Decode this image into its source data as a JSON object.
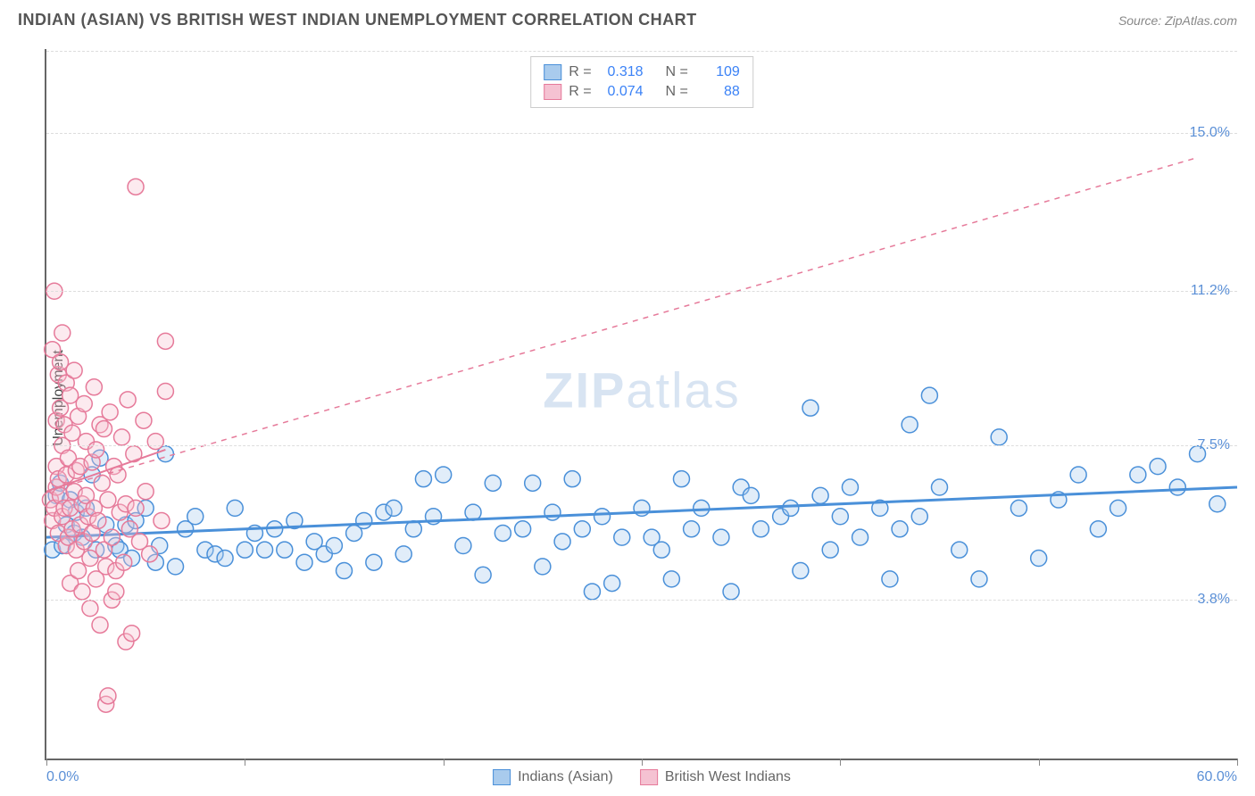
{
  "title": "INDIAN (ASIAN) VS BRITISH WEST INDIAN UNEMPLOYMENT CORRELATION CHART",
  "source": "Source: ZipAtlas.com",
  "y_axis_label": "Unemployment",
  "watermark_bold": "ZIP",
  "watermark_light": "atlas",
  "chart": {
    "type": "scatter",
    "xlim": [
      0,
      60
    ],
    "ylim": [
      0,
      17
    ],
    "x_tick_positions": [
      0,
      10,
      20,
      30,
      40,
      50,
      60
    ],
    "x_min_label": "0.0%",
    "x_max_label": "60.0%",
    "y_gridlines": [
      3.8,
      7.5,
      11.2,
      15.0
    ],
    "y_tick_labels": [
      "3.8%",
      "7.5%",
      "11.2%",
      "15.0%"
    ],
    "background_color": "#ffffff",
    "grid_color": "#dddddd",
    "axis_color": "#666666",
    "tick_label_color": "#5a8fd6",
    "marker_radius": 9,
    "marker_stroke_width": 1.5,
    "marker_fill_opacity": 0.35,
    "series": [
      {
        "name": "Indians (Asian)",
        "stroke": "#4a90d9",
        "fill": "#a9cbed",
        "r": 0.318,
        "n": 109,
        "trend": {
          "x1": 0,
          "y1": 5.3,
          "x2": 60,
          "y2": 6.5,
          "solid": true,
          "width": 3
        },
        "points": [
          [
            0.3,
            5.0
          ],
          [
            0.5,
            6.3
          ],
          [
            0.7,
            6.6
          ],
          [
            0.8,
            5.1
          ],
          [
            1.0,
            5.6
          ],
          [
            1.2,
            6.2
          ],
          [
            1.4,
            5.4
          ],
          [
            1.5,
            5.9
          ],
          [
            1.8,
            5.3
          ],
          [
            2.0,
            6.0
          ],
          [
            2.3,
            6.8
          ],
          [
            2.5,
            5.0
          ],
          [
            2.7,
            7.2
          ],
          [
            3.0,
            5.6
          ],
          [
            3.5,
            5.1
          ],
          [
            3.7,
            5.0
          ],
          [
            4.0,
            5.6
          ],
          [
            4.3,
            4.8
          ],
          [
            4.5,
            5.7
          ],
          [
            5.0,
            6.0
          ],
          [
            5.5,
            4.7
          ],
          [
            5.7,
            5.1
          ],
          [
            6.0,
            7.3
          ],
          [
            6.5,
            4.6
          ],
          [
            7.0,
            5.5
          ],
          [
            7.5,
            5.8
          ],
          [
            8.0,
            5.0
          ],
          [
            8.5,
            4.9
          ],
          [
            9.0,
            4.8
          ],
          [
            9.5,
            6.0
          ],
          [
            10.0,
            5.0
          ],
          [
            10.5,
            5.4
          ],
          [
            11.0,
            5.0
          ],
          [
            11.5,
            5.5
          ],
          [
            12.0,
            5.0
          ],
          [
            12.5,
            5.7
          ],
          [
            13.0,
            4.7
          ],
          [
            13.5,
            5.2
          ],
          [
            14.0,
            4.9
          ],
          [
            14.5,
            5.1
          ],
          [
            15.0,
            4.5
          ],
          [
            15.5,
            5.4
          ],
          [
            16.0,
            5.7
          ],
          [
            16.5,
            4.7
          ],
          [
            17.0,
            5.9
          ],
          [
            17.5,
            6.0
          ],
          [
            18.0,
            4.9
          ],
          [
            18.5,
            5.5
          ],
          [
            19.0,
            6.7
          ],
          [
            19.5,
            5.8
          ],
          [
            20.0,
            6.8
          ],
          [
            21.0,
            5.1
          ],
          [
            21.5,
            5.9
          ],
          [
            22.0,
            4.4
          ],
          [
            22.5,
            6.6
          ],
          [
            23.0,
            5.4
          ],
          [
            24.0,
            5.5
          ],
          [
            24.5,
            6.6
          ],
          [
            25.0,
            4.6
          ],
          [
            25.5,
            5.9
          ],
          [
            26.0,
            5.2
          ],
          [
            26.5,
            6.7
          ],
          [
            27.0,
            5.5
          ],
          [
            27.5,
            4.0
          ],
          [
            28.0,
            5.8
          ],
          [
            28.5,
            4.2
          ],
          [
            29.0,
            5.3
          ],
          [
            30.0,
            6.0
          ],
          [
            30.5,
            5.3
          ],
          [
            31.0,
            5.0
          ],
          [
            31.5,
            4.3
          ],
          [
            32.0,
            6.7
          ],
          [
            32.5,
            5.5
          ],
          [
            33.0,
            6.0
          ],
          [
            34.0,
            5.3
          ],
          [
            34.5,
            4.0
          ],
          [
            35.0,
            6.5
          ],
          [
            35.5,
            6.3
          ],
          [
            36.0,
            5.5
          ],
          [
            37.0,
            5.8
          ],
          [
            37.5,
            6.0
          ],
          [
            38.0,
            4.5
          ],
          [
            38.5,
            8.4
          ],
          [
            39.0,
            6.3
          ],
          [
            39.5,
            5.0
          ],
          [
            40.0,
            5.8
          ],
          [
            40.5,
            6.5
          ],
          [
            41.0,
            5.3
          ],
          [
            42.0,
            6.0
          ],
          [
            42.5,
            4.3
          ],
          [
            43.0,
            5.5
          ],
          [
            43.5,
            8.0
          ],
          [
            44.0,
            5.8
          ],
          [
            44.5,
            8.7
          ],
          [
            45.0,
            6.5
          ],
          [
            46.0,
            5.0
          ],
          [
            47.0,
            4.3
          ],
          [
            48.0,
            7.7
          ],
          [
            49.0,
            6.0
          ],
          [
            50.0,
            4.8
          ],
          [
            51.0,
            6.2
          ],
          [
            52.0,
            6.8
          ],
          [
            53.0,
            5.5
          ],
          [
            54.0,
            6.0
          ],
          [
            55.0,
            6.8
          ],
          [
            56.0,
            7.0
          ],
          [
            57.0,
            6.5
          ],
          [
            58.0,
            7.3
          ],
          [
            59.0,
            6.1
          ]
        ]
      },
      {
        "name": "British West Indians",
        "stroke": "#e67a9a",
        "fill": "#f5c2d2",
        "r": 0.074,
        "n": 88,
        "trend": {
          "x1": 0,
          "y1": 6.4,
          "x2": 6,
          "y2": 7.4,
          "solid": true,
          "width": 2
        },
        "extrapolation": {
          "x1": 0,
          "y1": 6.4,
          "x2": 58,
          "y2": 14.4,
          "solid": false,
          "width": 1.5
        },
        "points": [
          [
            0.2,
            6.2
          ],
          [
            0.3,
            5.7
          ],
          [
            0.3,
            9.8
          ],
          [
            0.4,
            11.2
          ],
          [
            0.4,
            6.0
          ],
          [
            0.5,
            8.1
          ],
          [
            0.5,
            6.5
          ],
          [
            0.5,
            7.0
          ],
          [
            0.6,
            5.4
          ],
          [
            0.6,
            9.2
          ],
          [
            0.6,
            6.7
          ],
          [
            0.7,
            8.4
          ],
          [
            0.7,
            9.5
          ],
          [
            0.7,
            6.3
          ],
          [
            0.8,
            5.8
          ],
          [
            0.8,
            10.2
          ],
          [
            0.8,
            7.5
          ],
          [
            0.9,
            6.0
          ],
          [
            0.9,
            8.0
          ],
          [
            1.0,
            5.1
          ],
          [
            1.0,
            6.8
          ],
          [
            1.0,
            9.0
          ],
          [
            1.1,
            5.3
          ],
          [
            1.1,
            7.2
          ],
          [
            1.2,
            4.2
          ],
          [
            1.2,
            6.0
          ],
          [
            1.2,
            8.7
          ],
          [
            1.3,
            5.5
          ],
          [
            1.3,
            7.8
          ],
          [
            1.4,
            6.4
          ],
          [
            1.4,
            9.3
          ],
          [
            1.5,
            5.0
          ],
          [
            1.5,
            6.9
          ],
          [
            1.6,
            4.5
          ],
          [
            1.6,
            8.2
          ],
          [
            1.7,
            5.6
          ],
          [
            1.7,
            7.0
          ],
          [
            1.8,
            6.1
          ],
          [
            1.8,
            4.0
          ],
          [
            1.9,
            5.2
          ],
          [
            1.9,
            8.5
          ],
          [
            2.0,
            6.3
          ],
          [
            2.0,
            7.6
          ],
          [
            2.1,
            5.8
          ],
          [
            2.2,
            4.8
          ],
          [
            2.2,
            3.6
          ],
          [
            2.3,
            7.1
          ],
          [
            2.3,
            5.4
          ],
          [
            2.4,
            8.9
          ],
          [
            2.4,
            6.0
          ],
          [
            2.5,
            4.3
          ],
          [
            2.5,
            7.4
          ],
          [
            2.6,
            5.7
          ],
          [
            2.7,
            8.0
          ],
          [
            2.7,
            3.2
          ],
          [
            2.8,
            6.6
          ],
          [
            2.9,
            5.0
          ],
          [
            2.9,
            7.9
          ],
          [
            3.0,
            4.6
          ],
          [
            3.0,
            1.3
          ],
          [
            3.1,
            6.2
          ],
          [
            3.1,
            1.5
          ],
          [
            3.2,
            8.3
          ],
          [
            3.3,
            5.3
          ],
          [
            3.3,
            3.8
          ],
          [
            3.4,
            7.0
          ],
          [
            3.5,
            4.0
          ],
          [
            3.5,
            4.5
          ],
          [
            3.6,
            6.8
          ],
          [
            3.7,
            5.9
          ],
          [
            3.8,
            7.7
          ],
          [
            3.9,
            4.7
          ],
          [
            4.0,
            6.1
          ],
          [
            4.0,
            2.8
          ],
          [
            4.1,
            8.6
          ],
          [
            4.2,
            5.5
          ],
          [
            4.3,
            3.0
          ],
          [
            4.4,
            7.3
          ],
          [
            4.5,
            6.0
          ],
          [
            4.5,
            13.7
          ],
          [
            4.7,
            5.2
          ],
          [
            4.9,
            8.1
          ],
          [
            5.0,
            6.4
          ],
          [
            5.2,
            4.9
          ],
          [
            5.5,
            7.6
          ],
          [
            5.8,
            5.7
          ],
          [
            6.0,
            10.0
          ],
          [
            6.0,
            8.8
          ]
        ]
      }
    ]
  },
  "stats_box": {
    "r_label": "R =",
    "n_label": "N ="
  }
}
